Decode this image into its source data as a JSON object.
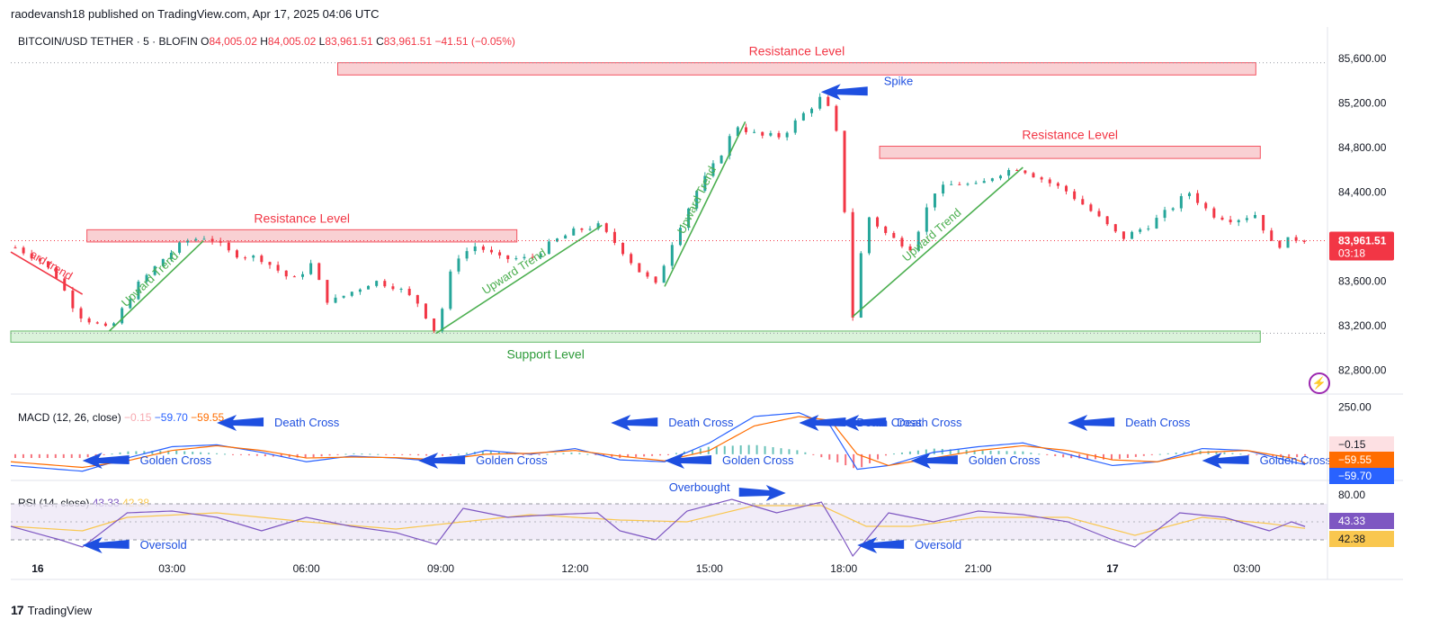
{
  "header": {
    "published": "raodevansh18 published on TradingView.com, Apr 17, 2025 04:06 UTC"
  },
  "legend": {
    "symbol": "BITCOIN/USD TETHER · 5 · BLOFIN",
    "o_label": "O",
    "o_value": "84,005.02",
    "h_label": "H",
    "h_value": "84,005.02",
    "l_label": "L",
    "l_value": "83,961.51",
    "c_label": "C",
    "c_value": "83,961.51",
    "change": "−41.51 (−0.05%)"
  },
  "macd_legend": {
    "name": "MACD (12, 26, close)",
    "hist": "−0.15",
    "macd": "−59.70",
    "signal": "−59.55"
  },
  "rsi_legend": {
    "name": "RSI (14, close)",
    "rsi": "43.33",
    "ma": "42.38"
  },
  "brand": {
    "name": "TradingView"
  },
  "colors": {
    "up": "#26a69a",
    "down": "#f23645",
    "resistance_fill": "#f8c8cc",
    "resistance_stroke": "#f23645",
    "support_fill": "#d4f0d4",
    "support_stroke": "#4caf50",
    "trend": "#4caf50",
    "arrow": "#1e4fe0",
    "macd": "#2962ff",
    "signal": "#ff6d00",
    "rsi": "#7e57c2",
    "rsi_ma": "#f9c74f"
  },
  "chart_data": {
    "type": "candlestick",
    "price_axis": {
      "range": [
        82600,
        85800
      ],
      "ticks": [
        "85,600.00",
        "85,200.00",
        "84,800.00",
        "84,400.00",
        "84,000.00",
        "83,600.00",
        "83,200.00",
        "82,800.00"
      ],
      "tick_values": [
        85600,
        85200,
        84800,
        84400,
        84000,
        83600,
        83200,
        82800
      ]
    },
    "time_axis": {
      "labels": [
        "16",
        "03:00",
        "06:00",
        "09:00",
        "12:00",
        "15:00",
        "18:00",
        "21:00",
        "17",
        "03:00"
      ],
      "hours": [
        0,
        3,
        6,
        9,
        12,
        15,
        18,
        21,
        24,
        27
      ],
      "range_hours": [
        -0.6,
        28.8
      ]
    },
    "current_price": {
      "value": 83961.51,
      "label": "83,961.51",
      "countdown": "03:18"
    },
    "price_path": [
      [
        -0.5,
        83900
      ],
      [
        0,
        83800
      ],
      [
        0.4,
        83650
      ],
      [
        0.9,
        83300
      ],
      [
        1.6,
        83150
      ],
      [
        2.2,
        83550
      ],
      [
        2.8,
        83800
      ],
      [
        3.3,
        83960
      ],
      [
        3.8,
        84000
      ],
      [
        4.3,
        83850
      ],
      [
        5.0,
        83800
      ],
      [
        5.7,
        83600
      ],
      [
        6.1,
        83750
      ],
      [
        6.5,
        83400
      ],
      [
        7.0,
        83500
      ],
      [
        7.5,
        83600
      ],
      [
        8.0,
        83550
      ],
      [
        8.5,
        83400
      ],
      [
        8.9,
        83130
      ],
      [
        9.3,
        83800
      ],
      [
        9.8,
        83920
      ],
      [
        10.3,
        83800
      ],
      [
        11.0,
        83800
      ],
      [
        11.5,
        83950
      ],
      [
        12.0,
        84050
      ],
      [
        12.5,
        84100
      ],
      [
        13.0,
        83900
      ],
      [
        13.4,
        83700
      ],
      [
        13.8,
        83560
      ],
      [
        14.2,
        83980
      ],
      [
        14.7,
        84400
      ],
      [
        15.2,
        84700
      ],
      [
        15.6,
        85000
      ],
      [
        16.1,
        84900
      ],
      [
        16.6,
        84900
      ],
      [
        17.1,
        85100
      ],
      [
        17.5,
        85250
      ],
      [
        17.8,
        85050
      ],
      [
        18.0,
        84300
      ],
      [
        18.1,
        83900
      ],
      [
        18.2,
        83280
      ],
      [
        18.5,
        84200
      ],
      [
        19.0,
        84000
      ],
      [
        19.5,
        83900
      ],
      [
        20.0,
        84400
      ],
      [
        20.5,
        84480
      ],
      [
        21.0,
        84450
      ],
      [
        21.4,
        84560
      ],
      [
        21.9,
        84620
      ],
      [
        22.4,
        84520
      ],
      [
        23.0,
        84400
      ],
      [
        23.6,
        84200
      ],
      [
        24.2,
        83980
      ],
      [
        24.8,
        84100
      ],
      [
        25.3,
        84250
      ],
      [
        25.7,
        84400
      ],
      [
        26.2,
        84200
      ],
      [
        26.7,
        84150
      ],
      [
        27.2,
        84200
      ],
      [
        27.6,
        83900
      ],
      [
        28.0,
        83980
      ],
      [
        28.4,
        83970
      ]
    ],
    "support": {
      "label": "Support Level",
      "low": 83050,
      "high": 83150,
      "from": -0.6,
      "to": 27.3
    },
    "resistances": [
      {
        "label": "Resistance Level",
        "low": 83950,
        "high": 84060,
        "from": 1.1,
        "to": 10.7
      },
      {
        "label": "Resistance Level",
        "low": 85450,
        "high": 85560,
        "from": 6.7,
        "to": 27.2
      },
      {
        "label": "Resistance Level",
        "low": 84700,
        "high": 84810,
        "from": 18.8,
        "to": 27.3
      }
    ],
    "trendlines": [
      {
        "label": "Upward Trend",
        "from": [
          1.6,
          83150
        ],
        "to": [
          3.7,
          83960
        ]
      },
      {
        "label": "Upward Trend",
        "from": [
          8.9,
          83130
        ],
        "to": [
          12.6,
          84100
        ]
      },
      {
        "label": "Upward Trend",
        "from": [
          14.0,
          83550
        ],
        "to": [
          15.8,
          85030
        ]
      },
      {
        "label": "Upward Trend",
        "from": [
          18.2,
          83280
        ],
        "to": [
          22.0,
          84620
        ]
      },
      {
        "label": "ard trend",
        "from": [
          -0.6,
          83860
        ],
        "to": [
          1.0,
          83480
        ],
        "down": true
      }
    ],
    "annotations": [
      {
        "label": "Spike",
        "pane": "price",
        "hour": 20.3,
        "value": 85200
      }
    ],
    "macd": {
      "axis_ticks": [
        "250.00"
      ],
      "tick_values": [
        250
      ],
      "range": [
        -120,
        300
      ],
      "path": [
        [
          -0.6,
          -60
        ],
        [
          1.0,
          -90
        ],
        [
          2.0,
          -20
        ],
        [
          3.0,
          40
        ],
        [
          4.0,
          50
        ],
        [
          5.0,
          10
        ],
        [
          6.0,
          -40
        ],
        [
          7.0,
          -10
        ],
        [
          8.0,
          -20
        ],
        [
          9.0,
          -40
        ],
        [
          10.0,
          20
        ],
        [
          11.0,
          0
        ],
        [
          12.0,
          30
        ],
        [
          13.0,
          -30
        ],
        [
          14.0,
          -40
        ],
        [
          15.0,
          60
        ],
        [
          16.0,
          200
        ],
        [
          17.0,
          220
        ],
        [
          17.7,
          150
        ],
        [
          18.3,
          -80
        ],
        [
          19.0,
          -60
        ],
        [
          20.0,
          10
        ],
        [
          21.0,
          40
        ],
        [
          22.0,
          60
        ],
        [
          23.0,
          0
        ],
        [
          24.0,
          -60
        ],
        [
          25.0,
          -40
        ],
        [
          26.0,
          30
        ],
        [
          27.0,
          20
        ],
        [
          28.0,
          -40
        ],
        [
          28.4,
          -60
        ]
      ],
      "signal_path": [
        [
          -0.6,
          -40
        ],
        [
          1.0,
          -70
        ],
        [
          2.0,
          -35
        ],
        [
          3.0,
          20
        ],
        [
          4.0,
          45
        ],
        [
          5.0,
          20
        ],
        [
          6.0,
          -20
        ],
        [
          7.0,
          -15
        ],
        [
          8.0,
          -18
        ],
        [
          9.0,
          -30
        ],
        [
          10.0,
          0
        ],
        [
          11.0,
          5
        ],
        [
          12.0,
          20
        ],
        [
          13.0,
          -10
        ],
        [
          14.0,
          -35
        ],
        [
          15.0,
          20
        ],
        [
          16.0,
          150
        ],
        [
          17.0,
          200
        ],
        [
          17.7,
          180
        ],
        [
          18.3,
          0
        ],
        [
          19.0,
          -60
        ],
        [
          20.0,
          -20
        ],
        [
          21.0,
          20
        ],
        [
          22.0,
          45
        ],
        [
          23.0,
          20
        ],
        [
          24.0,
          -30
        ],
        [
          25.0,
          -40
        ],
        [
          26.0,
          10
        ],
        [
          27.0,
          20
        ],
        [
          28.0,
          -20
        ],
        [
          28.4,
          -55
        ]
      ],
      "annotations": [
        {
          "label": "Death Cross",
          "hour": 4.0
        },
        {
          "label": "Golden Cross",
          "hour": 1.0
        },
        {
          "label": "Golden Cross",
          "hour": 8.5
        },
        {
          "label": "Death Cross",
          "hour": 12.8
        },
        {
          "label": "Golden Cross",
          "hour": 14.0
        },
        {
          "label": "Death Cross",
          "hour": 17.0
        },
        {
          "label": "Death Cross",
          "hour": 17.9
        },
        {
          "label": "Golden Cross",
          "hour": 19.5
        },
        {
          "label": "Death Cross",
          "hour": 23.0
        },
        {
          "label": "Golden Cross",
          "hour": 26.0
        }
      ]
    },
    "rsi": {
      "axis_ticks": [
        "80.00"
      ],
      "tick_values": [
        80
      ],
      "range": [
        10,
        90
      ],
      "bands": [
        30,
        70
      ],
      "path": [
        [
          -0.6,
          45
        ],
        [
          0.5,
          30
        ],
        [
          1.0,
          22
        ],
        [
          2.0,
          60
        ],
        [
          3.0,
          62
        ],
        [
          4.0,
          55
        ],
        [
          5.0,
          40
        ],
        [
          6.0,
          55
        ],
        [
          7.0,
          45
        ],
        [
          8.0,
          38
        ],
        [
          8.9,
          25
        ],
        [
          9.5,
          65
        ],
        [
          10.5,
          55
        ],
        [
          11.5,
          58
        ],
        [
          12.5,
          60
        ],
        [
          13.0,
          40
        ],
        [
          13.8,
          30
        ],
        [
          14.5,
          62
        ],
        [
          15.5,
          75
        ],
        [
          16.5,
          60
        ],
        [
          17.5,
          72
        ],
        [
          18.0,
          30
        ],
        [
          18.2,
          12
        ],
        [
          19.0,
          60
        ],
        [
          20.0,
          50
        ],
        [
          21.0,
          62
        ],
        [
          22.0,
          58
        ],
        [
          23.0,
          50
        ],
        [
          24.0,
          30
        ],
        [
          24.5,
          22
        ],
        [
          25.5,
          60
        ],
        [
          26.5,
          55
        ],
        [
          27.5,
          40
        ],
        [
          28.0,
          50
        ],
        [
          28.4,
          43
        ]
      ],
      "ma_path": [
        [
          -0.6,
          45
        ],
        [
          1.0,
          40
        ],
        [
          2.0,
          55
        ],
        [
          4.0,
          60
        ],
        [
          6.0,
          50
        ],
        [
          8.0,
          42
        ],
        [
          9.5,
          50
        ],
        [
          11.0,
          58
        ],
        [
          13.0,
          52
        ],
        [
          14.5,
          50
        ],
        [
          16.0,
          68
        ],
        [
          17.5,
          68
        ],
        [
          18.5,
          45
        ],
        [
          19.5,
          45
        ],
        [
          21.0,
          55
        ],
        [
          23.0,
          55
        ],
        [
          24.5,
          35
        ],
        [
          26.0,
          55
        ],
        [
          27.5,
          48
        ],
        [
          28.4,
          42
        ]
      ],
      "annotations": [
        {
          "label": "Oversold",
          "hour": 1.0
        },
        {
          "label": "Overbought",
          "hour": 15.5
        },
        {
          "label": "Oversold",
          "hour": 18.3
        }
      ]
    }
  }
}
